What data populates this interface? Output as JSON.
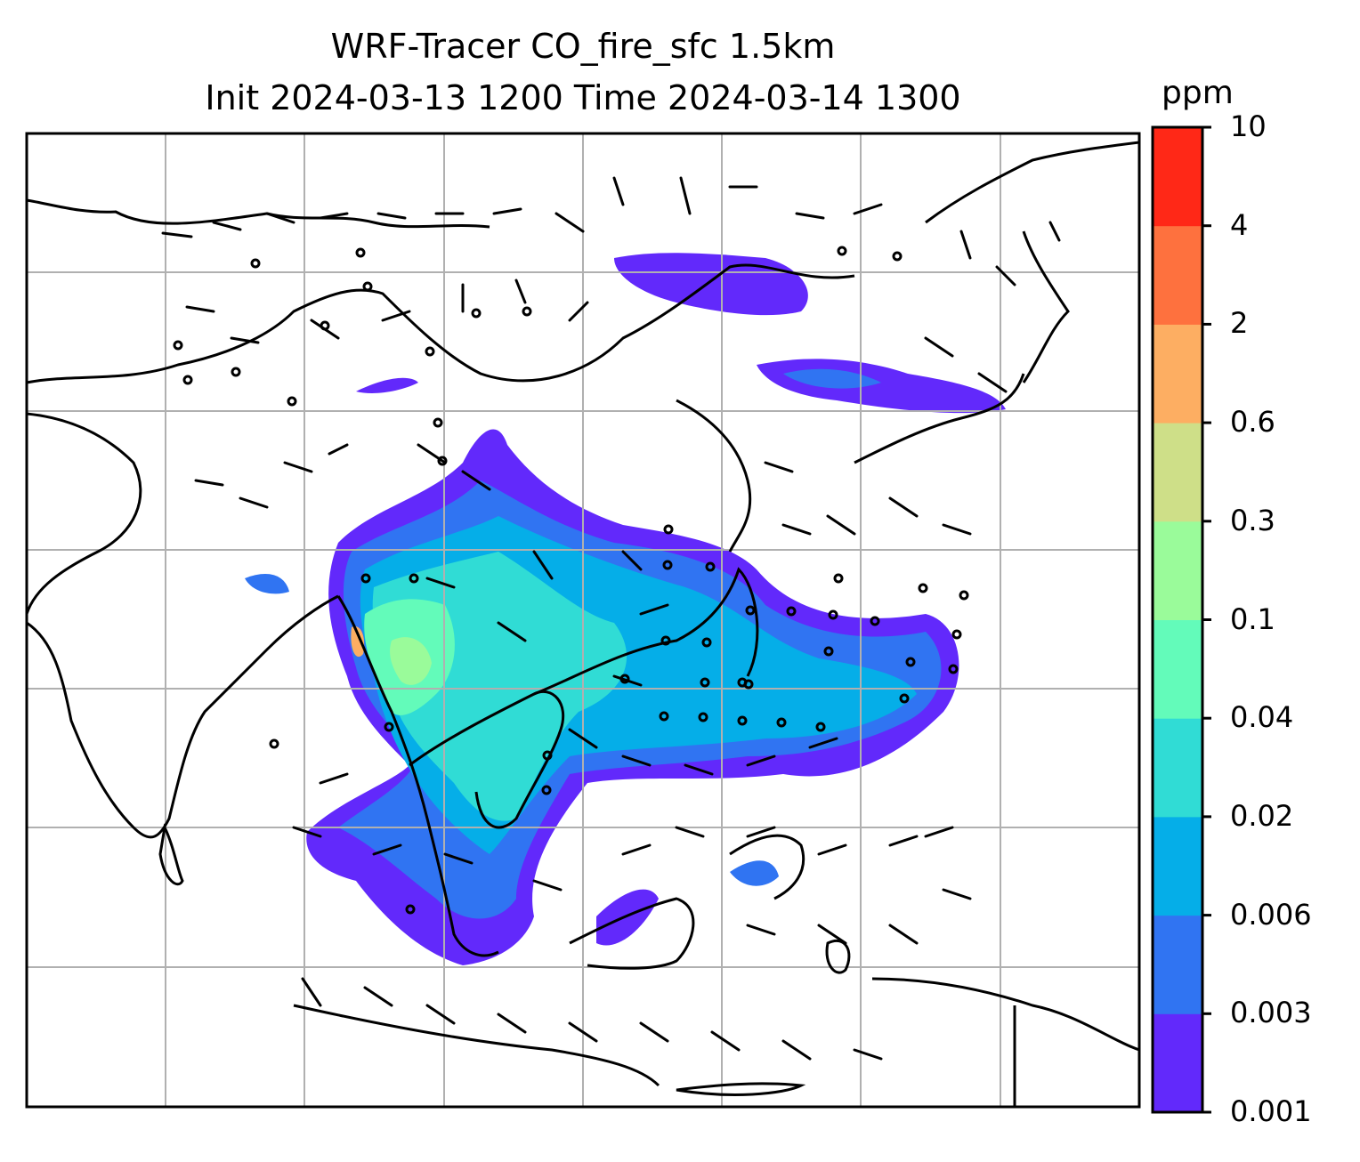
{
  "title": {
    "line1": "WRF-Tracer CO_fire_sfc 1.5km",
    "line2": "Init 2024-03-13 1200 Time 2024-03-14 1300"
  },
  "colorbar": {
    "unit": "ppm",
    "levels": [
      "0.001",
      "0.003",
      "0.006",
      "0.02",
      "0.04",
      "0.1",
      "0.3",
      "0.6",
      "2",
      "4",
      "10"
    ],
    "colors": [
      "#6229fb",
      "#3074f2",
      "#05aee8",
      "#30dcd5",
      "#63fbba",
      "#9afb9a",
      "#cedf88",
      "#fdae62",
      "#fe713e",
      "#ff2817"
    ]
  },
  "map": {
    "background": "#ffffff",
    "gridline_color": "#b0b0b0",
    "coastline_color": "#000000",
    "wind_barbs": "present"
  }
}
